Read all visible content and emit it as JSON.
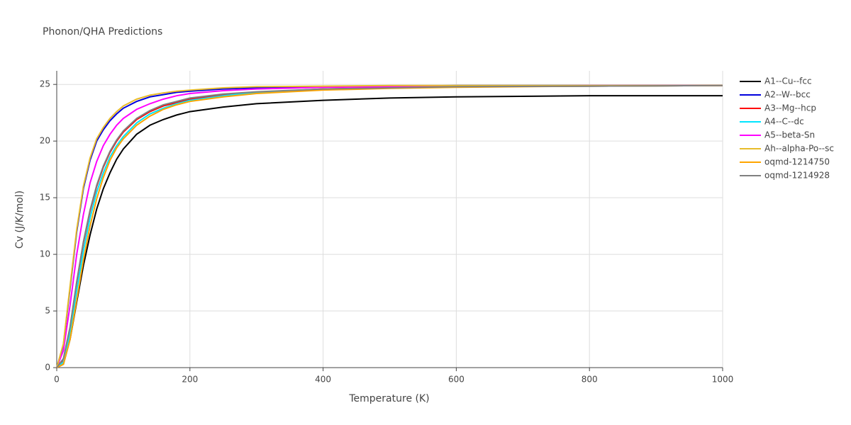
{
  "chart_data": {
    "type": "line",
    "title": "Phonon/QHA Predictions",
    "x_label": "Temperature (K)",
    "y_label": "Cv (J/K/mol)",
    "x": [
      0,
      10,
      20,
      30,
      40,
      50,
      60,
      70,
      80,
      90,
      100,
      120,
      140,
      160,
      180,
      200,
      250,
      300,
      400,
      500,
      600,
      800,
      1000
    ],
    "xlim": [
      0,
      1000
    ],
    "xticks": [
      0,
      200,
      400,
      600,
      800,
      1000
    ],
    "ylim": [
      0,
      26.2
    ],
    "yticks": [
      0,
      5,
      10,
      15,
      20,
      25
    ],
    "grid": true,
    "series": [
      {
        "name": "A1--Cu--fcc",
        "color": "#000000",
        "values": [
          0,
          0.3,
          2.5,
          5.8,
          9,
          11.7,
          14,
          15.8,
          17.2,
          18.4,
          19.3,
          20.6,
          21.4,
          21.9,
          22.3,
          22.6,
          23.0,
          23.3,
          23.6,
          23.8,
          23.9,
          24.0,
          24.0
        ]
      },
      {
        "name": "A2--W--bcc",
        "color": "#0000dd",
        "values": [
          0,
          2,
          7,
          12,
          15.8,
          18.3,
          20,
          21,
          21.8,
          22.4,
          22.9,
          23.5,
          23.9,
          24.1,
          24.3,
          24.4,
          24.6,
          24.7,
          24.8,
          24.85,
          24.9,
          24.9,
          24.9
        ]
      },
      {
        "name": "A3--Mg--hcp",
        "color": "#ff0000",
        "values": [
          0,
          0.7,
          3.5,
          7.5,
          11,
          13.8,
          16,
          17.7,
          19,
          20,
          20.8,
          21.9,
          22.6,
          23.1,
          23.4,
          23.7,
          24.1,
          24.3,
          24.6,
          24.7,
          24.8,
          24.85,
          24.9
        ]
      },
      {
        "name": "A4--C--dc",
        "color": "#00e5ff",
        "values": [
          0,
          0.5,
          3,
          6.8,
          10.3,
          13.2,
          15.5,
          17.2,
          18.6,
          19.6,
          20.4,
          21.6,
          22.4,
          22.9,
          23.3,
          23.6,
          24.0,
          24.3,
          24.55,
          24.7,
          24.8,
          24.85,
          24.9
        ]
      },
      {
        "name": "A5--beta-Sn",
        "color": "#ff00ff",
        "values": [
          0,
          1.5,
          5.5,
          10,
          13.5,
          16.3,
          18.2,
          19.6,
          20.6,
          21.4,
          22,
          22.8,
          23.3,
          23.7,
          24,
          24.2,
          24.45,
          24.6,
          24.75,
          24.8,
          24.85,
          24.9,
          24.9
        ]
      },
      {
        "name": "Ah--alpha-Po--sc",
        "color": "#e8bc2a",
        "values": [
          0,
          2.1,
          7.2,
          12.2,
          16,
          18.5,
          20.2,
          21.2,
          22,
          22.6,
          23.1,
          23.7,
          24.05,
          24.25,
          24.4,
          24.5,
          24.7,
          24.8,
          24.85,
          24.9,
          24.9,
          24.9,
          24.9
        ]
      },
      {
        "name": "oqmd-1214750",
        "color": "#ffa500",
        "values": [
          0,
          0.3,
          2.5,
          6,
          9.5,
          12.5,
          14.9,
          16.8,
          18.3,
          19.4,
          20.2,
          21.4,
          22.2,
          22.8,
          23.2,
          23.5,
          23.9,
          24.2,
          24.5,
          24.65,
          24.75,
          24.85,
          24.9
        ]
      },
      {
        "name": "oqmd-1214928",
        "color": "#808080",
        "values": [
          0,
          0.8,
          3.6,
          7.6,
          11.1,
          13.9,
          16.1,
          17.8,
          19.1,
          20.1,
          20.9,
          22,
          22.7,
          23.2,
          23.5,
          23.8,
          24.15,
          24.35,
          24.6,
          24.7,
          24.8,
          24.85,
          24.9
        ]
      }
    ]
  }
}
